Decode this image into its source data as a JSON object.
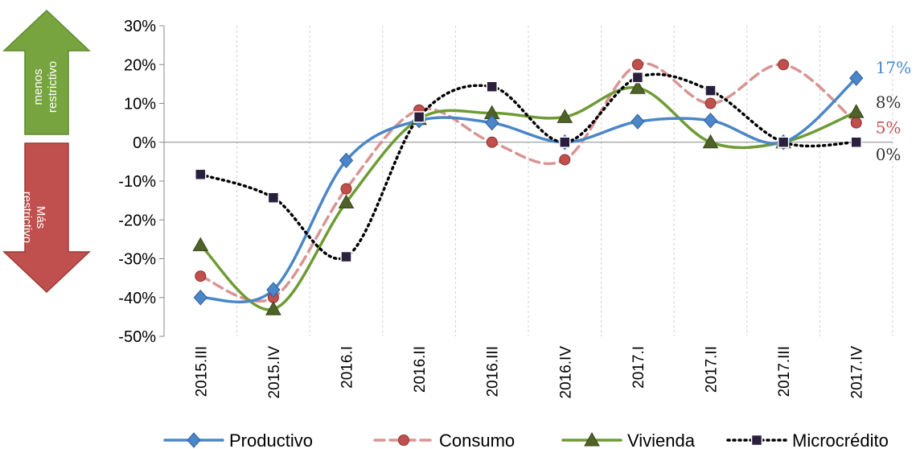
{
  "chart_data": {
    "type": "line",
    "categories": [
      "2015.III",
      "2015.IV",
      "2016.I",
      "2016.II",
      "2016.III",
      "2016.IV",
      "2017.I",
      "2017.II",
      "2017.III",
      "2017.IV"
    ],
    "ylim": [
      -50,
      30
    ],
    "yticks": [
      30,
      20,
      10,
      0,
      -10,
      -20,
      -30,
      -40,
      -50
    ],
    "ytick_labels": [
      "30%",
      "20%",
      "10%",
      "0%",
      "-10%",
      "-20%",
      "-30%",
      "-40%",
      "-50%"
    ],
    "grid": "vertical dashed",
    "legend_position": "bottom",
    "series": [
      {
        "name": "Productivo",
        "color": "#4a86c8",
        "marker": "diamond",
        "style": "solid",
        "values": [
          -40,
          -38,
          -4.7,
          5.6,
          5,
          0,
          5.3,
          5.6,
          0,
          16.5
        ],
        "end_label": "17%"
      },
      {
        "name": "Consumo",
        "color": "#d99493",
        "marker_color": "#c0504d",
        "marker": "circle",
        "style": "dashed",
        "values": [
          -34.5,
          -40,
          -12,
          8.3,
          0,
          -4.5,
          20,
          10,
          20,
          5
        ],
        "end_label": "5%",
        "end_label_color": "#c0504d"
      },
      {
        "name": "Vivienda",
        "color": "#6e9b35",
        "marker_color": "#4f6228",
        "marker": "triangle",
        "style": "solid",
        "values": [
          -26.5,
          -43,
          -15.5,
          6,
          7.5,
          6.5,
          14,
          0,
          0,
          7.8
        ],
        "end_label": "8%",
        "end_label_color": "#333333"
      },
      {
        "name": "Microcrédito",
        "color": "#000000",
        "marker_color": "#2a1f3d",
        "marker": "square",
        "style": "dotted",
        "values": [
          -8.3,
          -14.3,
          -29.5,
          6.5,
          14.3,
          0,
          16.7,
          13.3,
          0,
          0
        ],
        "end_label": "0%",
        "end_label_color": "#333333"
      }
    ]
  },
  "side_arrows": {
    "up": {
      "line1": "menos",
      "line2": "restrictivo",
      "color": "#77a43f",
      "border": "#5c8a2c"
    },
    "down": {
      "line1": "Más",
      "line2": "restrictivo",
      "color": "#c0504d",
      "border": "#9b3b38"
    }
  }
}
